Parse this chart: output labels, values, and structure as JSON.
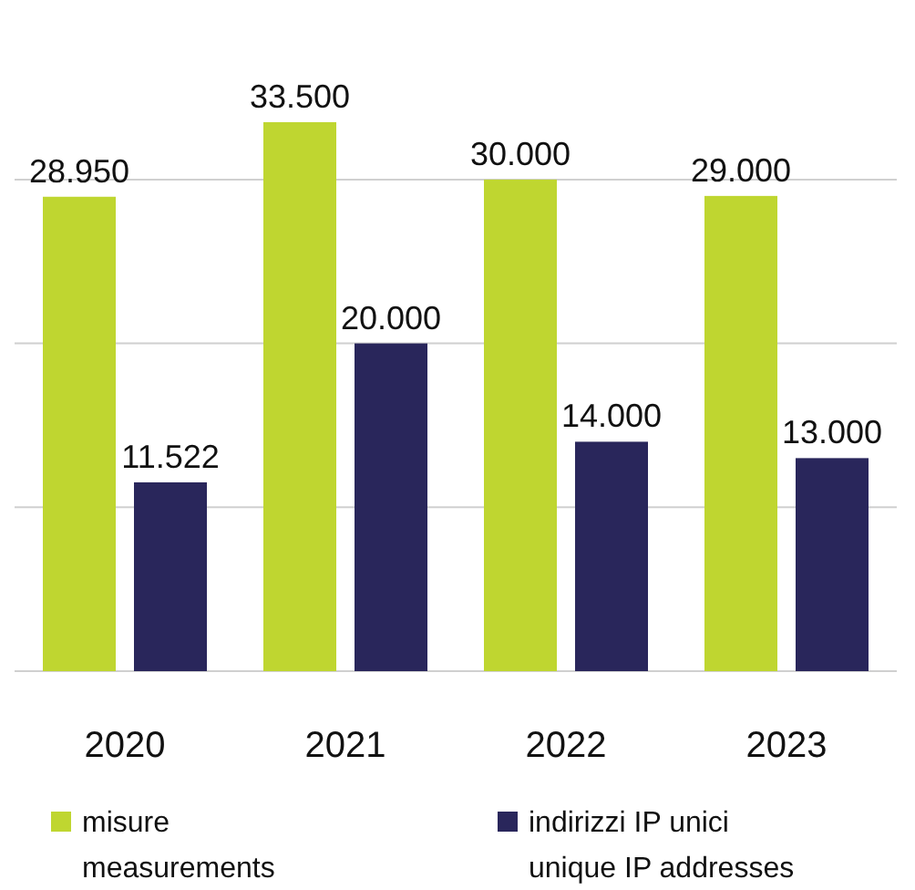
{
  "chart_data": {
    "type": "bar",
    "categories": [
      "2020",
      "2021",
      "2022",
      "2023"
    ],
    "series": [
      {
        "name": "misure\nmeasurements",
        "color": "#bfd630",
        "values": [
          28950,
          33500,
          30000,
          29000
        ],
        "value_labels": [
          "28.950",
          "33.500",
          "30.000",
          "29.000"
        ]
      },
      {
        "name": "indirizzi IP unici\nunique IP addresses",
        "color": "#29265b",
        "values": [
          11522,
          20000,
          14000,
          13000
        ],
        "value_labels": [
          "11.522",
          "20.000",
          "14.000",
          "13.000"
        ]
      }
    ],
    "yticks": [
      {
        "value": 0,
        "label": null
      },
      {
        "value": 10000,
        "label": null
      },
      {
        "value": 20000,
        "label": null
      },
      {
        "value": 30000,
        "label": null
      }
    ],
    "tick_labels": "x",
    "grid": "y",
    "legend": "bottom"
  }
}
